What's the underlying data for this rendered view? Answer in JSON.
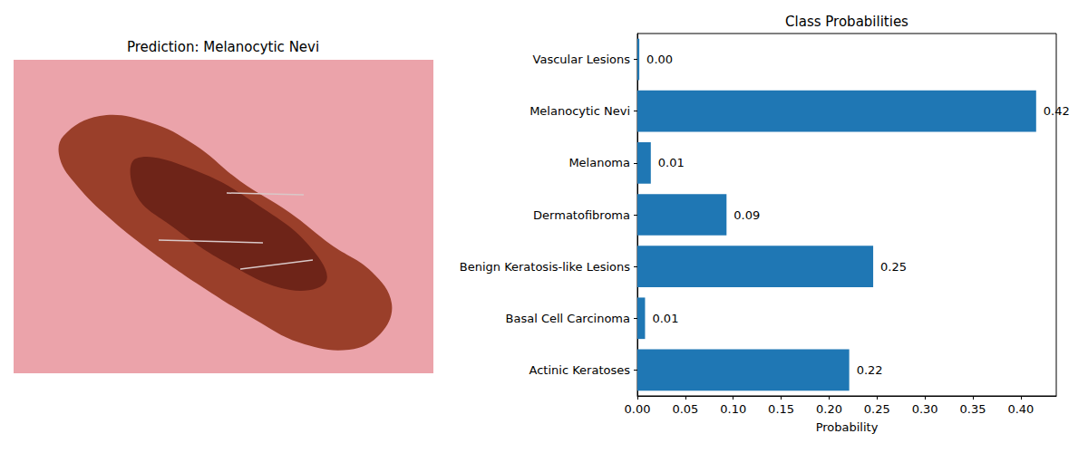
{
  "image_panel": {
    "title": "Prediction: Melanocytic Nevi"
  },
  "chart_data": {
    "type": "bar",
    "title": "Class Probabilities",
    "xlabel": "Probability",
    "orientation": "horizontal",
    "categories": [
      "Actinic Keratoses",
      "Basal Cell Carcinoma",
      "Benign Keratosis-like Lesions",
      "Dermatofibroma",
      "Melanoma",
      "Melanocytic Nevi",
      "Vascular Lesions"
    ],
    "values": [
      0.221,
      0.008,
      0.246,
      0.093,
      0.014,
      0.416,
      0.002
    ],
    "value_labels": [
      "0.22",
      "0.01",
      "0.25",
      "0.09",
      "0.01",
      "0.42",
      "0.00"
    ],
    "data_labels": true,
    "color": "#1f77b4",
    "xlim": [
      0,
      0.437
    ],
    "xticks": [
      {
        "value": 0,
        "label": "0.00"
      },
      0.05,
      {
        "value": 0.1,
        "label": "0.10"
      },
      0.15,
      {
        "value": 0.2,
        "label": "0.20"
      },
      0.25,
      {
        "value": 0.3,
        "label": "0.30"
      },
      0.35,
      {
        "value": 0.4,
        "label": "0.40"
      }
    ],
    "grid": false
  }
}
